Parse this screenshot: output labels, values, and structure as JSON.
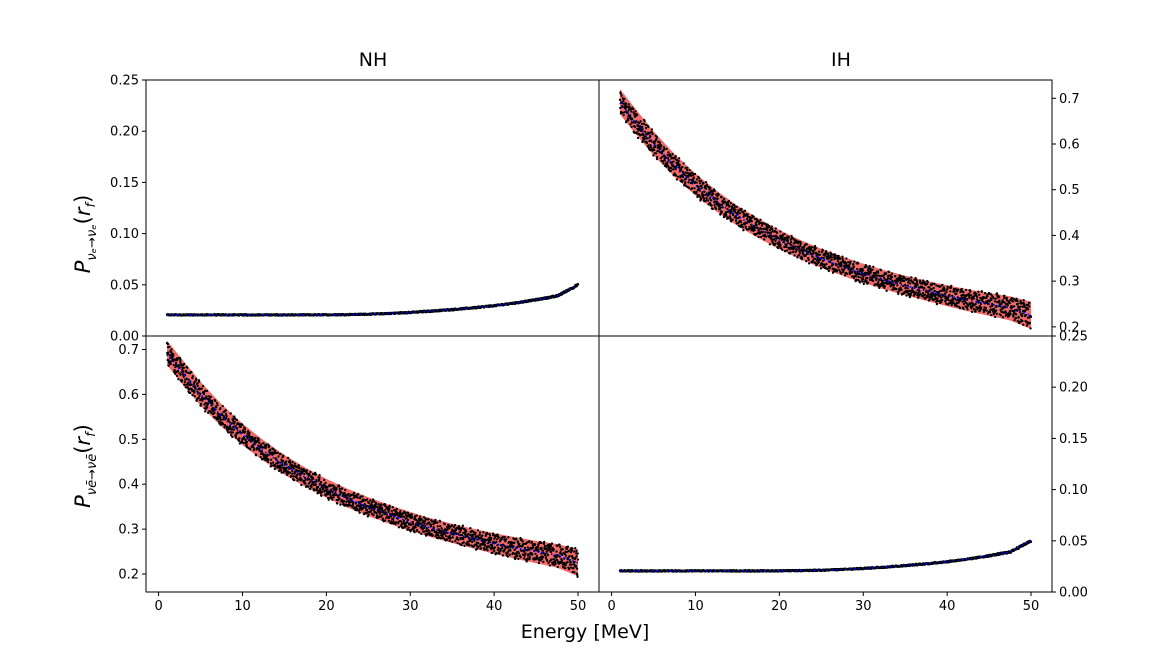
{
  "chart_data": {
    "type": "line",
    "layout": "2x2 grid, shared x-axis, left column ticks on left, right column ticks on right",
    "columns": [
      "NH",
      "IH"
    ],
    "xlabel": "Energy [MeV]",
    "xlim": [
      -1.5,
      52.5
    ],
    "x_ticks": [
      0,
      10,
      20,
      30,
      40,
      50
    ],
    "x": [
      1,
      2.5,
      5,
      7.5,
      10,
      12.5,
      15,
      17.5,
      20,
      22.5,
      25,
      27.5,
      30,
      32.5,
      35,
      37.5,
      40,
      42.5,
      45,
      47.5,
      50
    ],
    "styles": {
      "band_color": "#f26b6b",
      "scatter_color": "#000000",
      "mean_line_color": "#0000ff",
      "mean_line_style": "dotted"
    },
    "panels": [
      {
        "id": "top-left",
        "column": "NH",
        "ylabel": "P_{νe→νe}(r_f)",
        "ylim": [
          0,
          0.25
        ],
        "y_ticks": [
          0.0,
          0.05,
          0.1,
          0.15,
          0.2,
          0.25
        ],
        "y_tick_labels": [
          "0.00",
          "0.05",
          "0.10",
          "0.15",
          "0.20",
          "0.25"
        ],
        "y_axis_side": "left",
        "scatter_spread": 0.0015,
        "mean": [
          0.0206,
          0.0206,
          0.0206,
          0.0206,
          0.0206,
          0.0206,
          0.0206,
          0.0206,
          0.0207,
          0.0209,
          0.0213,
          0.022,
          0.023,
          0.0243,
          0.0258,
          0.0275,
          0.0296,
          0.0322,
          0.0354,
          0.039,
          0.05
        ],
        "band_low": [
          0.0199,
          0.0199,
          0.0199,
          0.0199,
          0.0199,
          0.0199,
          0.0199,
          0.0199,
          0.02,
          0.0202,
          0.0206,
          0.0213,
          0.0222,
          0.0235,
          0.025,
          0.0267,
          0.0288,
          0.0314,
          0.0345,
          0.038,
          0.0488
        ],
        "band_high": [
          0.0213,
          0.0213,
          0.0213,
          0.0213,
          0.0213,
          0.0213,
          0.0213,
          0.0213,
          0.0214,
          0.0216,
          0.022,
          0.0227,
          0.0238,
          0.0251,
          0.0266,
          0.0283,
          0.0304,
          0.033,
          0.0363,
          0.04,
          0.0512
        ]
      },
      {
        "id": "top-right",
        "column": "IH",
        "ylabel": "",
        "ylim": [
          0.18,
          0.74
        ],
        "y_ticks": [
          0.2,
          0.3,
          0.4,
          0.5,
          0.6,
          0.7
        ],
        "y_tick_labels": [
          "0.2",
          "0.3",
          "0.4",
          "0.5",
          "0.6",
          "0.7"
        ],
        "y_axis_side": "right",
        "scatter_spread": 0.02,
        "mean": [
          0.69,
          0.655,
          0.6,
          0.552,
          0.51,
          0.474,
          0.442,
          0.415,
          0.39,
          0.368,
          0.349,
          0.332,
          0.316,
          0.302,
          0.29,
          0.279,
          0.268,
          0.258,
          0.25,
          0.242,
          0.225
        ],
        "band_low": [
          0.665,
          0.63,
          0.575,
          0.528,
          0.487,
          0.452,
          0.421,
          0.394,
          0.37,
          0.348,
          0.329,
          0.312,
          0.296,
          0.282,
          0.269,
          0.257,
          0.245,
          0.234,
          0.224,
          0.214,
          0.195
        ],
        "band_high": [
          0.72,
          0.685,
          0.628,
          0.578,
          0.535,
          0.498,
          0.465,
          0.437,
          0.412,
          0.39,
          0.371,
          0.354,
          0.338,
          0.324,
          0.312,
          0.301,
          0.291,
          0.282,
          0.274,
          0.267,
          0.255
        ]
      },
      {
        "id": "bottom-left",
        "column": "NH",
        "ylabel": "P_{ν̄e→ν̄e}(r_f)",
        "ylim": [
          0.16,
          0.73
        ],
        "y_ticks": [
          0.2,
          0.3,
          0.4,
          0.5,
          0.6,
          0.7
        ],
        "y_tick_labels": [
          "0.2",
          "0.3",
          "0.4",
          "0.5",
          "0.6",
          "0.7"
        ],
        "y_axis_side": "left",
        "scatter_spread": 0.02,
        "mean": [
          0.69,
          0.655,
          0.6,
          0.552,
          0.51,
          0.474,
          0.442,
          0.415,
          0.39,
          0.368,
          0.349,
          0.332,
          0.316,
          0.302,
          0.29,
          0.279,
          0.268,
          0.258,
          0.25,
          0.242,
          0.225
        ],
        "band_low": [
          0.665,
          0.63,
          0.575,
          0.528,
          0.487,
          0.452,
          0.421,
          0.394,
          0.37,
          0.348,
          0.329,
          0.312,
          0.296,
          0.282,
          0.269,
          0.257,
          0.245,
          0.234,
          0.224,
          0.214,
          0.195
        ],
        "band_high": [
          0.72,
          0.685,
          0.628,
          0.578,
          0.535,
          0.498,
          0.465,
          0.437,
          0.412,
          0.39,
          0.371,
          0.354,
          0.338,
          0.324,
          0.312,
          0.301,
          0.291,
          0.282,
          0.274,
          0.267,
          0.255
        ]
      },
      {
        "id": "bottom-right",
        "column": "IH",
        "ylabel": "",
        "ylim": [
          0,
          0.25
        ],
        "y_ticks": [
          0.0,
          0.05,
          0.1,
          0.15,
          0.2,
          0.25
        ],
        "y_tick_labels": [
          "0.00",
          "0.05",
          "0.10",
          "0.15",
          "0.20",
          "0.25"
        ],
        "y_axis_side": "right",
        "scatter_spread": 0.0015,
        "mean": [
          0.0206,
          0.0206,
          0.0206,
          0.0206,
          0.0206,
          0.0206,
          0.0206,
          0.0206,
          0.0207,
          0.0209,
          0.0213,
          0.022,
          0.023,
          0.0243,
          0.0258,
          0.0275,
          0.0296,
          0.0322,
          0.0354,
          0.039,
          0.05
        ],
        "band_low": [
          0.0199,
          0.0199,
          0.0199,
          0.0199,
          0.0199,
          0.0199,
          0.0199,
          0.0199,
          0.02,
          0.0202,
          0.0206,
          0.0213,
          0.0222,
          0.0235,
          0.025,
          0.0267,
          0.0288,
          0.0314,
          0.0345,
          0.038,
          0.0488
        ],
        "band_high": [
          0.0213,
          0.0213,
          0.0213,
          0.0213,
          0.0213,
          0.0213,
          0.0213,
          0.0213,
          0.0214,
          0.0216,
          0.022,
          0.0227,
          0.0238,
          0.0251,
          0.0266,
          0.0283,
          0.0304,
          0.033,
          0.0363,
          0.04,
          0.0512
        ]
      }
    ]
  }
}
